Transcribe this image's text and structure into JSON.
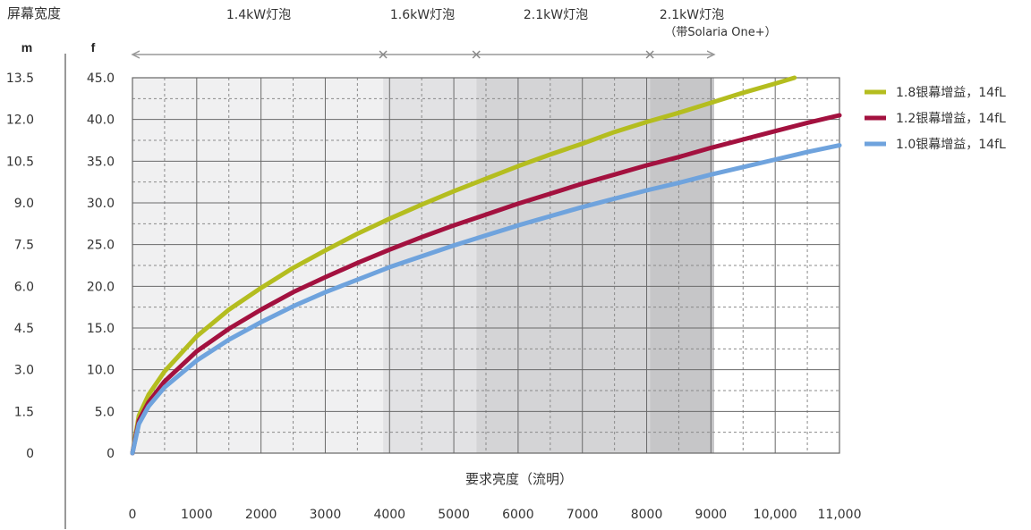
{
  "chart_data": {
    "type": "line",
    "corner_label": "屏幕宽度",
    "unit_m": "m",
    "unit_f": "f",
    "xlabel": "要求亮度（流明）",
    "x_ticks": [
      "0",
      "1000",
      "2000",
      "3000",
      "4000",
      "5000",
      "6000",
      "7000",
      "8000",
      "9000",
      "10,000",
      "11,000"
    ],
    "x_tick_values": [
      0,
      1000,
      2000,
      3000,
      4000,
      5000,
      6000,
      7000,
      8000,
      9000,
      10000,
      11000
    ],
    "xlim": [
      0,
      11000
    ],
    "y_ticks_feet": [
      "0",
      "5.0",
      "10.0",
      "15.0",
      "20.0",
      "25.0",
      "30.0",
      "35.0",
      "40.0",
      "45.0"
    ],
    "y_ticks_meters": [
      "0",
      "1.5",
      "3.0",
      "4.5",
      "6.0",
      "7.5",
      "9.0",
      "10.5",
      "12.0",
      "13.5"
    ],
    "ylim": [
      0,
      45
    ],
    "grid": true,
    "legend_position": "right",
    "lamp_ranges": [
      {
        "label": "1.4kW灯泡",
        "sublabel": "",
        "start": 0,
        "end": 3900,
        "shade": "#f0f0f1"
      },
      {
        "label": "1.6kW灯泡",
        "sublabel": "",
        "start": 3900,
        "end": 5350,
        "shade": "#e2e2e4"
      },
      {
        "label": "2.1kW灯泡",
        "sublabel": "",
        "start": 5350,
        "end": 8050,
        "shade": "#d4d4d6"
      },
      {
        "label": "2.1kW灯泡",
        "sublabel": "（带Solaria One+）",
        "start": 8050,
        "end": 9050,
        "shade": "#c6c6c8"
      }
    ],
    "series": [
      {
        "name": "1.8银幕增益，14fL",
        "color": "#b4bd1f",
        "x": [
          0,
          100,
          250,
          500,
          1000,
          1500,
          2000,
          2500,
          3000,
          3500,
          4000,
          4500,
          5000,
          5500,
          6000,
          6500,
          7000,
          7500,
          8000,
          8500,
          9000,
          9500,
          10000,
          10300
        ],
        "y": [
          0,
          4.5,
          7.0,
          9.8,
          14.0,
          17.2,
          19.8,
          22.2,
          24.3,
          26.3,
          28.1,
          29.8,
          31.4,
          32.9,
          34.4,
          35.8,
          37.1,
          38.5,
          39.7,
          40.8,
          42.0,
          43.2,
          44.3,
          45.0
        ]
      },
      {
        "name": "1.2银幕增益，14fL",
        "color": "#a3113f",
        "x": [
          0,
          100,
          250,
          500,
          1000,
          1500,
          2000,
          2500,
          3000,
          3500,
          4000,
          4500,
          5000,
          5500,
          6000,
          6500,
          7000,
          7500,
          8000,
          8500,
          9000,
          9500,
          10000,
          10500,
          11000
        ],
        "y": [
          0,
          3.9,
          6.1,
          8.6,
          12.2,
          14.9,
          17.2,
          19.3,
          21.1,
          22.8,
          24.4,
          25.9,
          27.3,
          28.6,
          29.9,
          31.1,
          32.3,
          33.4,
          34.5,
          35.5,
          36.6,
          37.6,
          38.6,
          39.6,
          40.5
        ]
      },
      {
        "name": "1.0银幕增益，14fL",
        "color": "#6fa3dd",
        "x": [
          0,
          100,
          250,
          500,
          1000,
          1500,
          2000,
          2500,
          3000,
          3500,
          4000,
          4500,
          5000,
          5500,
          6000,
          6500,
          7000,
          7500,
          8000,
          8500,
          9000,
          9500,
          10000,
          10500,
          11000
        ],
        "y": [
          0,
          3.5,
          5.6,
          7.9,
          11.1,
          13.6,
          15.7,
          17.6,
          19.3,
          20.8,
          22.3,
          23.6,
          24.9,
          26.1,
          27.3,
          28.4,
          29.5,
          30.5,
          31.5,
          32.4,
          33.4,
          34.3,
          35.2,
          36.1,
          36.9
        ]
      }
    ]
  }
}
